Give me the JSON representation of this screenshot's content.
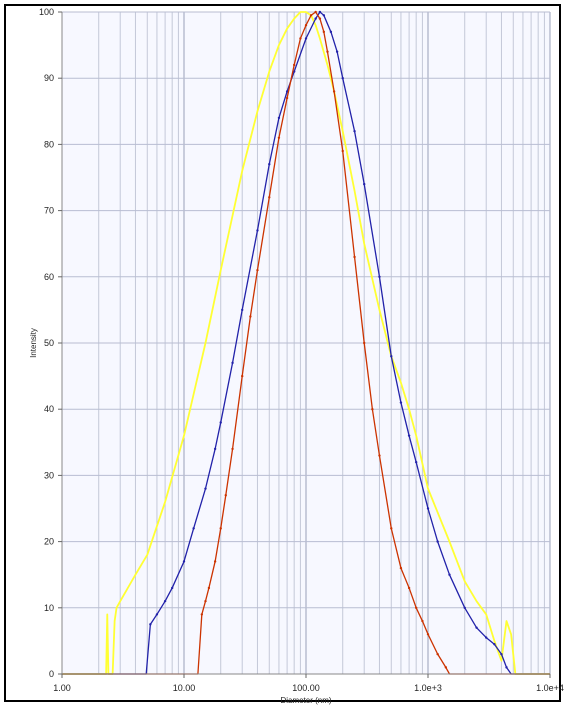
{
  "chart_data": {
    "type": "line",
    "title": "",
    "xlabel": "Diameter (nm)",
    "ylabel": "Intensity",
    "x_scale": "log",
    "xlim": [
      1,
      10000
    ],
    "ylim": [
      0,
      100
    ],
    "grid": true,
    "x_ticks": [
      {
        "value": 1,
        "label": "1.00"
      },
      {
        "value": 10,
        "label": "10.00"
      },
      {
        "value": 100,
        "label": "100.00"
      },
      {
        "value": 1000,
        "label": "1.0e+3"
      },
      {
        "value": 10000,
        "label": "1.0e+4"
      }
    ],
    "y_ticks": [
      {
        "value": 0,
        "label": "0"
      },
      {
        "value": 10,
        "label": "10"
      },
      {
        "value": 20,
        "label": "20"
      },
      {
        "value": 30,
        "label": "30"
      },
      {
        "value": 40,
        "label": "40"
      },
      {
        "value": 50,
        "label": "50"
      },
      {
        "value": 60,
        "label": "60"
      },
      {
        "value": 70,
        "label": "70"
      },
      {
        "value": 80,
        "label": "80"
      },
      {
        "value": 90,
        "label": "90"
      },
      {
        "value": 100,
        "label": "100"
      }
    ],
    "series": [
      {
        "color": "#ffff33",
        "markers": false,
        "x": [
          1,
          2.3,
          2.35,
          2.4,
          2.6,
          2.7,
          2.8,
          3.0,
          4.0,
          5.0,
          7.0,
          10,
          15,
          20,
          30,
          40,
          50,
          60,
          70,
          80,
          90,
          100,
          110,
          120,
          130,
          150,
          170,
          200,
          250,
          300,
          400,
          500,
          600,
          700,
          800,
          1000,
          1500,
          2000,
          2500,
          3000,
          3500,
          4000,
          4400,
          4800,
          5200,
          5600,
          10000
        ],
        "y": [
          0,
          0,
          9,
          0,
          0,
          8,
          10,
          11,
          15,
          18,
          26,
          36,
          50,
          61,
          76,
          85,
          91,
          95,
          97.5,
          99,
          100,
          100,
          99.5,
          98,
          96,
          92,
          88,
          82,
          73,
          65,
          55,
          48,
          44,
          40,
          36,
          28,
          20,
          14,
          11,
          9,
          5,
          2,
          8,
          6,
          0,
          0,
          0
        ]
      },
      {
        "color": "#2222aa",
        "markers": true,
        "x": [
          1,
          4.9,
          5.3,
          6,
          7,
          8,
          10,
          12,
          15,
          18,
          20,
          25,
          30,
          40,
          50,
          60,
          70,
          80,
          100,
          120,
          130,
          140,
          160,
          180,
          200,
          250,
          300,
          400,
          500,
          600,
          700,
          800,
          1000,
          1200,
          1500,
          2000,
          2500,
          3000,
          3500,
          4000,
          4400,
          4800,
          10000
        ],
        "y": [
          0,
          0,
          7.5,
          9,
          11,
          13,
          17,
          22,
          28,
          34,
          38,
          47,
          55,
          67,
          77,
          84,
          88,
          91,
          96,
          99,
          100,
          99.5,
          97,
          94,
          90,
          82,
          74,
          60,
          48,
          41,
          36,
          32,
          25,
          20,
          15,
          10,
          7,
          5.5,
          4.5,
          3,
          1,
          0,
          0
        ]
      },
      {
        "color": "#cc3300",
        "markers": true,
        "x": [
          1,
          13,
          14,
          15,
          16,
          18,
          20,
          22,
          25,
          30,
          35,
          40,
          50,
          60,
          70,
          80,
          90,
          100,
          110,
          120,
          130,
          140,
          150,
          170,
          200,
          250,
          300,
          350,
          400,
          500,
          600,
          700,
          800,
          900,
          1000,
          1200,
          1400,
          1500,
          10000
        ],
        "y": [
          0,
          0,
          9,
          11,
          13,
          17,
          22,
          27,
          34,
          45,
          54,
          61,
          72,
          81,
          87,
          92,
          96,
          98,
          99.5,
          100,
          99,
          97,
          94,
          88,
          79,
          63,
          50,
          40,
          33,
          22,
          16,
          13,
          10,
          8,
          6,
          3,
          1,
          0,
          0
        ]
      }
    ]
  }
}
